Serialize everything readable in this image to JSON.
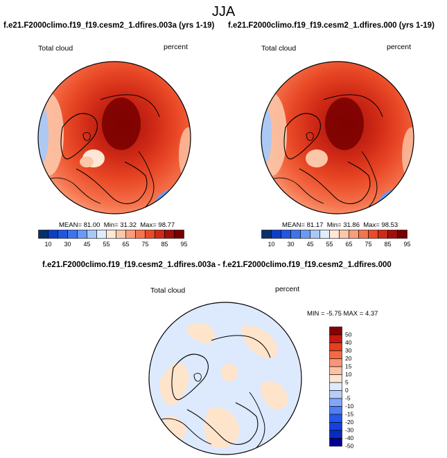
{
  "page": {
    "season": "JJA"
  },
  "colors": {
    "abs_scale": [
      "#08306b",
      "#0d3ec8",
      "#1f55e0",
      "#3c74ee",
      "#6a9af5",
      "#a9c8f8",
      "#ddeefe",
      "#ffe7d6",
      "#fcc6a8",
      "#fb9c7a",
      "#f5744e",
      "#ea4a27",
      "#d02a16",
      "#a10f0c",
      "#780000"
    ],
    "diff_scale": [
      "#000090",
      "#0a2bbf",
      "#1542db",
      "#2358ee",
      "#4f7ef5",
      "#85a6f7",
      "#b6cdfa",
      "#dde9fd",
      "#ffe4cc",
      "#fcc1a4",
      "#f99575",
      "#f36a45",
      "#e2401f",
      "#c21a0e",
      "#8a0000"
    ]
  },
  "chart_data": [
    {
      "type": "heatmap",
      "projection": "north-polar-stereographic",
      "title": "f.e21.F2000climo.f19_f19.cesm2_1.dfires.003a (yrs 1-19)",
      "left_label": "Total cloud",
      "right_label": "percent",
      "stats": {
        "mean": "81.00",
        "min": "31.32",
        "max": "98.77"
      },
      "mean_label": "MEAN=",
      "min_label": "Min=",
      "max_label": "Max=",
      "colorbar_labels": [
        "10",
        "30",
        "45",
        "55",
        "65",
        "75",
        "85",
        "95"
      ]
    },
    {
      "type": "heatmap",
      "projection": "north-polar-stereographic",
      "title": "f.e21.F2000climo.f19_f19.cesm2_1.dfires.000 (yrs 1-19)",
      "left_label": "Total cloud",
      "right_label": "percent",
      "stats": {
        "mean": "81.17",
        "min": "31.86",
        "max": "98.53"
      },
      "mean_label": "MEAN=",
      "min_label": "Min=",
      "max_label": "Max=",
      "colorbar_labels": [
        "10",
        "30",
        "45",
        "55",
        "65",
        "75",
        "85",
        "95"
      ]
    },
    {
      "type": "heatmap",
      "projection": "north-polar-stereographic",
      "title": "f.e21.F2000climo.f19_f19.cesm2_1.dfires.003a - f.e21.F2000climo.f19_f19.cesm2_1.dfires.000",
      "left_label": "Total cloud",
      "right_label": "percent",
      "minmax_text": "MIN = -5.75 MAX = 4.37",
      "colorbar_labels": [
        "50",
        "40",
        "30",
        "20",
        "15",
        "10",
        "5",
        "0",
        "-5",
        "-10",
        "-15",
        "-20",
        "-30",
        "-40",
        "-50"
      ]
    }
  ]
}
